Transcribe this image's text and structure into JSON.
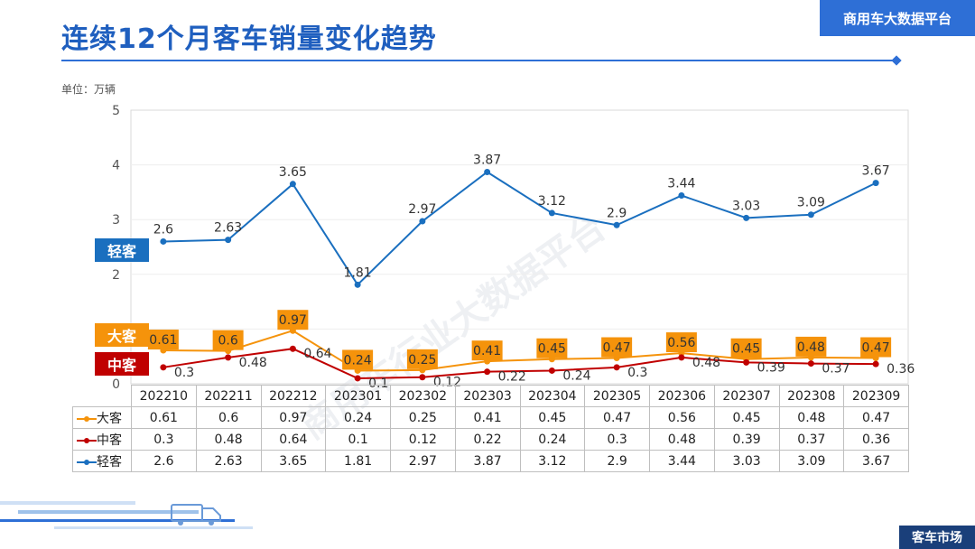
{
  "header": {
    "title": "连续12个月客车销量变化趋势",
    "brand": "商用车大数据平台",
    "unit": "单位：万辆",
    "footer_badge": "客车市场",
    "watermark": "商用车行业大数据平台"
  },
  "colors": {
    "light": "#1a6fbf",
    "large": "#f5930b",
    "medium": "#c00000",
    "grid": "#d9d9d9"
  },
  "chart_data": {
    "type": "line",
    "title": "连续12个月客车销量变化趋势",
    "ylabel": "单位：万辆",
    "ylim": [
      0,
      5
    ],
    "yticks": [
      0,
      1,
      2,
      3,
      4,
      5
    ],
    "categories": [
      "202210",
      "202211",
      "202212",
      "202301",
      "202302",
      "202303",
      "202304",
      "202305",
      "202306",
      "202307",
      "202308",
      "202309"
    ],
    "series": [
      {
        "name": "大客",
        "key": "large",
        "values": [
          0.61,
          0.6,
          0.97,
          0.24,
          0.25,
          0.41,
          0.45,
          0.47,
          0.56,
          0.45,
          0.48,
          0.47
        ]
      },
      {
        "name": "中客",
        "key": "medium",
        "values": [
          0.3,
          0.48,
          0.64,
          0.1,
          0.12,
          0.22,
          0.24,
          0.3,
          0.48,
          0.39,
          0.37,
          0.36
        ]
      },
      {
        "name": "轻客",
        "key": "light",
        "values": [
          2.6,
          2.63,
          3.65,
          1.81,
          2.97,
          3.87,
          3.12,
          2.9,
          3.44,
          3.03,
          3.09,
          3.67
        ]
      }
    ],
    "series_tags": {
      "light": "轻客",
      "large": "大客",
      "medium": "中客"
    }
  }
}
